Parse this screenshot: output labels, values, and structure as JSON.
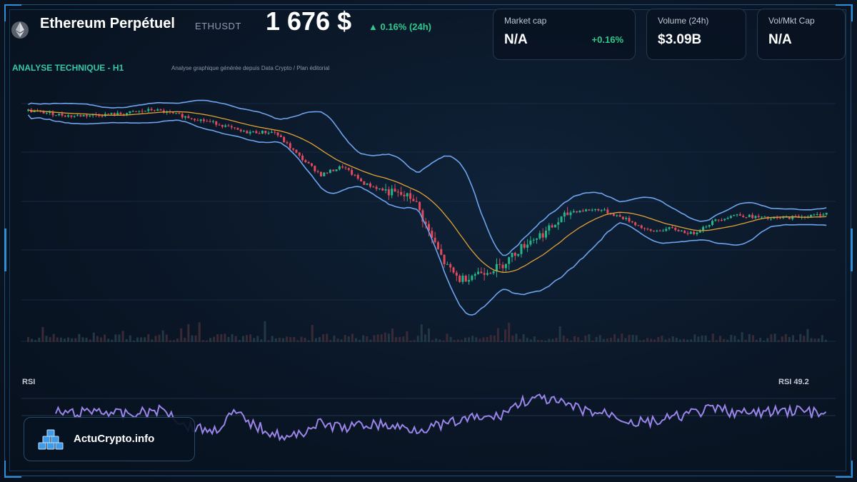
{
  "header": {
    "title": "Ethereum Perpétuel",
    "symbol": "ETHUSDT",
    "price": "1 676 $",
    "change_24h": "▲ 0.16% (24h)"
  },
  "cards": [
    {
      "label": "Market cap",
      "value": "N/A",
      "change": "+0.16%"
    },
    {
      "label": "Volume (24h)",
      "value": "$3.09B"
    },
    {
      "label": "Vol/Mkt Cap",
      "value": "N/A"
    }
  ],
  "analysis": {
    "title": "ANALYSE TECHNIQUE - H1",
    "subtitle": "Analyse graphique générée depuis Data Crypto / Plan éditorial"
  },
  "rsi": {
    "label": "RSI",
    "value_label": "RSI 49.2"
  },
  "brand": {
    "name": "ActuCrypto.info"
  },
  "colors": {
    "up": "#26b58a",
    "down": "#e04a5a",
    "bollinger": "#6ea4ec",
    "ma": "#e0a232",
    "rsi": "#9a86ea",
    "accent": "#35c9a6"
  },
  "chart_data": {
    "type": "candlestick",
    "price_path": [
      [
        0,
        1.0
      ],
      [
        60,
        0.95
      ],
      [
        130,
        0.97
      ],
      [
        175,
        1.01
      ],
      [
        230,
        0.93
      ],
      [
        265,
        0.88
      ],
      [
        300,
        0.8
      ],
      [
        345,
        0.8
      ],
      [
        380,
        0.57
      ],
      [
        410,
        0.4
      ],
      [
        440,
        0.48
      ],
      [
        470,
        0.32
      ],
      [
        500,
        0.25
      ],
      [
        540,
        0.18
      ],
      [
        560,
        -0.12
      ],
      [
        585,
        -0.45
      ],
      [
        605,
        -0.58
      ],
      [
        625,
        -0.52
      ],
      [
        660,
        -0.46
      ],
      [
        700,
        -0.22
      ],
      [
        725,
        -0.13
      ],
      [
        760,
        0.06
      ],
      [
        800,
        0.08
      ],
      [
        840,
        -0.02
      ],
      [
        870,
        -0.13
      ],
      [
        900,
        -0.1
      ],
      [
        930,
        -0.15
      ],
      [
        960,
        -0.03
      ],
      [
        990,
        0.03
      ],
      [
        1040,
        -0.01
      ],
      [
        1100,
        0.02
      ],
      [
        1122,
        0.05
      ]
    ],
    "rsi_path": [
      [
        0,
        0.35
      ],
      [
        30,
        0.38
      ],
      [
        60,
        0.3
      ],
      [
        100,
        0.4
      ],
      [
        160,
        0.3
      ],
      [
        190,
        0.62
      ],
      [
        230,
        0.72
      ],
      [
        260,
        0.36
      ],
      [
        290,
        0.62
      ],
      [
        340,
        0.88
      ],
      [
        380,
        0.58
      ],
      [
        420,
        0.66
      ],
      [
        460,
        0.58
      ],
      [
        520,
        0.68
      ],
      [
        560,
        0.62
      ],
      [
        600,
        0.48
      ],
      [
        640,
        0.45
      ],
      [
        680,
        0.12
      ],
      [
        710,
        0.08
      ],
      [
        740,
        0.2
      ],
      [
        780,
        0.35
      ],
      [
        810,
        0.38
      ],
      [
        840,
        0.56
      ],
      [
        880,
        0.52
      ],
      [
        920,
        0.38
      ],
      [
        960,
        0.28
      ],
      [
        1000,
        0.38
      ],
      [
        1040,
        0.34
      ],
      [
        1080,
        0.3
      ],
      [
        1122,
        0.42
      ]
    ]
  }
}
